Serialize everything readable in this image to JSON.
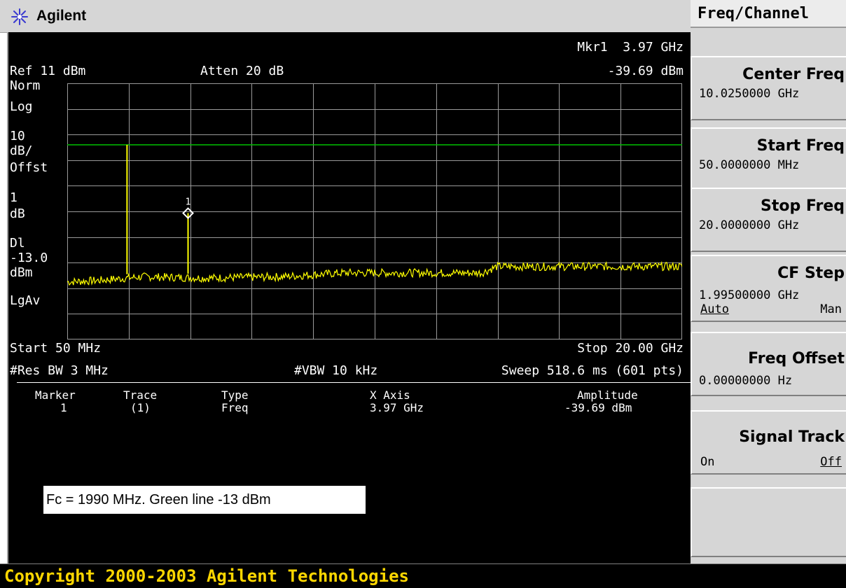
{
  "header": {
    "brand": "Agilent"
  },
  "screen": {
    "ref_level": "Ref 11 dBm",
    "atten": "Atten 20 dB",
    "marker_readout_freq": "Mkr1  3.97 GHz",
    "marker_readout_amp": "-39.69 dBm",
    "left_annotations": [
      "Norm",
      "Log",
      "10",
      "dB/",
      "Offst",
      "1",
      "dB",
      "Dl",
      "-13.0",
      "dBm",
      "LgAv"
    ],
    "start": "Start 50 MHz",
    "stop": "Stop 20.00 GHz",
    "res_bw": "#Res BW 3 MHz",
    "vbw": "#VBW 10 kHz",
    "sweep": "Sweep 518.6 ms (601 pts)"
  },
  "marker_table": {
    "headers": [
      "Marker",
      "Trace",
      "Type",
      "X Axis",
      "Amplitude"
    ],
    "rows": [
      [
        "1",
        "(1)",
        "Freq",
        "3.97 GHz",
        "-39.69 dBm"
      ]
    ]
  },
  "note": "Fc = 1990 MHz. Green line -13 dBm",
  "footer": {
    "copyright": "Copyright 2000-2003 Agilent Technologies"
  },
  "menu": {
    "title": "Freq/Channel",
    "softkeys": [
      {
        "label": "Center Freq",
        "value": "10.0250000 GHz"
      },
      {
        "label": "Start Freq",
        "value": "50.0000000 MHz"
      },
      {
        "label": "Stop Freq",
        "value": "20.0000000 GHz"
      },
      {
        "label": "CF Step",
        "value": "1.99500000 GHz",
        "opt_a": "Auto",
        "opt_b": "Man"
      },
      {
        "label": "Freq Offset",
        "value": "0.00000000  Hz"
      },
      {
        "label": "Signal Track",
        "opt_a": "On",
        "opt_b": "Off"
      },
      {
        "label": ""
      }
    ]
  },
  "colors": {
    "trace": "#ffff00",
    "display_line": "#00c000",
    "grid": "#9a9a9a",
    "screen_bg": "#000000",
    "copyright": "#ffd700"
  },
  "chart_data": {
    "type": "line",
    "x_unit": "GHz",
    "y_unit": "dBm",
    "xlim": [
      0.05,
      20.0
    ],
    "ylim": [
      -89,
      11
    ],
    "display_line": -13.0,
    "spur_peaks": [
      {
        "x": 1.99,
        "y": -13
      },
      {
        "x": 3.97,
        "y": -39.69
      }
    ],
    "marker": {
      "name": "1",
      "x": 3.97,
      "y": -39.69
    },
    "noise_floor": [
      [
        0.05,
        -66.5
      ],
      [
        1.0,
        -66
      ],
      [
        2.5,
        -64.5
      ],
      [
        4.5,
        -65
      ],
      [
        7.0,
        -64.5
      ],
      [
        9.0,
        -63
      ],
      [
        13.5,
        -63
      ],
      [
        14.0,
        -60.5
      ],
      [
        20.0,
        -60.5
      ]
    ]
  }
}
